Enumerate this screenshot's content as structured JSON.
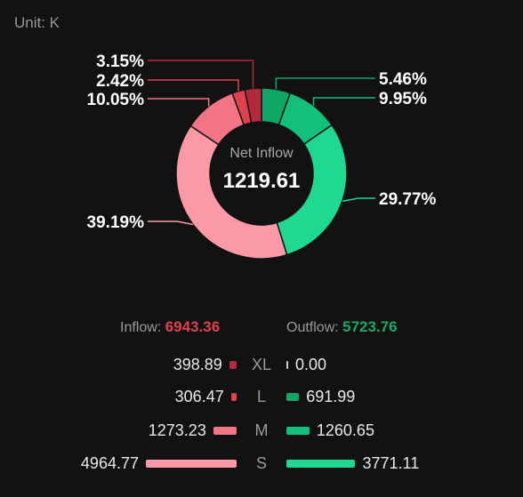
{
  "unit_label": "Unit: K",
  "center": {
    "label": "Net Inflow",
    "value": "1219.61"
  },
  "totals": {
    "inflow_label": "Inflow:",
    "inflow_value": "6943.36",
    "outflow_label": "Outflow:",
    "outflow_value": "5723.76"
  },
  "colors": {
    "xl_in": "#b3283a",
    "l_in": "#e0414f",
    "m_in": "#f27485",
    "s_in": "#fb9aa6",
    "xl_out": "#6fe6b8",
    "l_out": "#10a663",
    "m_out": "#12c07c",
    "s_out": "#1fd892",
    "inflow_text": "#e0414f",
    "outflow_text": "#1aa86d"
  },
  "chart_data": {
    "type": "pie",
    "style": "donut",
    "slices": [
      {
        "label": "3.15%",
        "value": 3.15,
        "side": "inflow",
        "size": "XL",
        "color": "#b3283a"
      },
      {
        "label": "2.42%",
        "value": 2.42,
        "side": "inflow",
        "size": "L",
        "color": "#e0414f"
      },
      {
        "label": "10.05%",
        "value": 10.05,
        "side": "inflow",
        "size": "M",
        "color": "#f27485"
      },
      {
        "label": "39.19%",
        "value": 39.19,
        "side": "inflow",
        "size": "S",
        "color": "#fb9aa6"
      },
      {
        "label": "5.46%",
        "value": 5.46,
        "side": "outflow",
        "size": "L",
        "color": "#10a663"
      },
      {
        "label": "9.95%",
        "value": 9.95,
        "side": "outflow",
        "size": "M",
        "color": "#12c07c"
      },
      {
        "label": "29.77%",
        "value": 29.77,
        "side": "outflow",
        "size": "S",
        "color": "#1fd892"
      }
    ]
  },
  "rows": [
    {
      "size": "XL",
      "inflow": 398.89,
      "inflow_text": "398.89",
      "outflow": 0.0,
      "outflow_text": "0.00"
    },
    {
      "size": "L",
      "inflow": 306.47,
      "inflow_text": "306.47",
      "outflow": 691.99,
      "outflow_text": "691.99"
    },
    {
      "size": "M",
      "inflow": 1273.23,
      "inflow_text": "1273.23",
      "outflow": 1260.65,
      "outflow_text": "1260.65"
    },
    {
      "size": "S",
      "inflow": 4964.77,
      "inflow_text": "4964.77",
      "outflow": 3771.11,
      "outflow_text": "3771.11"
    }
  ]
}
